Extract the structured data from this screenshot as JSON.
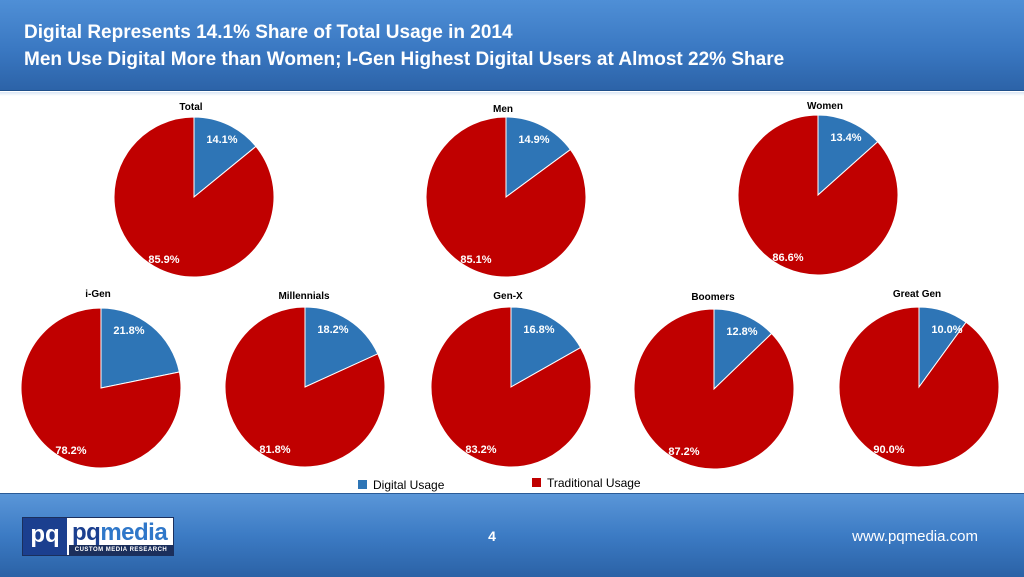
{
  "header": {
    "title_line1": "Digital Represents 14.1% Share of Total Usage in 2014",
    "title_line2": "Men Use Digital More than Women; I-Gen Highest Digital Users at Almost 22% Share"
  },
  "colors": {
    "digital": "#2e75b6",
    "traditional": "#c00000",
    "header_bg": "#3a78c2"
  },
  "chart_data": [
    {
      "type": "pie",
      "title": "Total",
      "categories": [
        "Digital Usage",
        "Traditional Usage"
      ],
      "values": [
        14.1,
        85.9
      ],
      "labels": [
        "14.1%",
        "85.9%"
      ]
    },
    {
      "type": "pie",
      "title": "Men",
      "categories": [
        "Digital Usage",
        "Traditional Usage"
      ],
      "values": [
        14.9,
        85.1
      ],
      "labels": [
        "14.9%",
        "85.1%"
      ]
    },
    {
      "type": "pie",
      "title": "Women",
      "categories": [
        "Digital Usage",
        "Traditional Usage"
      ],
      "values": [
        13.4,
        86.6
      ],
      "labels": [
        "13.4%",
        "86.6%"
      ]
    },
    {
      "type": "pie",
      "title": "i-Gen",
      "categories": [
        "Digital Usage",
        "Traditional Usage"
      ],
      "values": [
        21.8,
        78.2
      ],
      "labels": [
        "21.8%",
        "78.2%"
      ]
    },
    {
      "type": "pie",
      "title": "Millennials",
      "categories": [
        "Digital Usage",
        "Traditional Usage"
      ],
      "values": [
        18.2,
        81.8
      ],
      "labels": [
        "18.2%",
        "81.8%"
      ]
    },
    {
      "type": "pie",
      "title": "Gen-X",
      "categories": [
        "Digital Usage",
        "Traditional Usage"
      ],
      "values": [
        16.8,
        83.2
      ],
      "labels": [
        "16.8%",
        "83.2%"
      ]
    },
    {
      "type": "pie",
      "title": "Boomers",
      "categories": [
        "Digital Usage",
        "Traditional Usage"
      ],
      "values": [
        12.8,
        87.2
      ],
      "labels": [
        "12.8%",
        "87.2%"
      ]
    },
    {
      "type": "pie",
      "title": "Great Gen",
      "categories": [
        "Digital Usage",
        "Traditional Usage"
      ],
      "values": [
        10.0,
        90.0
      ],
      "labels": [
        "10.0%",
        "90.0%"
      ]
    }
  ],
  "legend": {
    "items": [
      "Digital Usage",
      "Traditional Usage"
    ]
  },
  "footer": {
    "logo_short": "pq",
    "logo_name_part1": "pq",
    "logo_name_part2": "media",
    "logo_tagline": "CUSTOM MEDIA RESEARCH",
    "page_number": "4",
    "website": "www.pqmedia.com"
  }
}
